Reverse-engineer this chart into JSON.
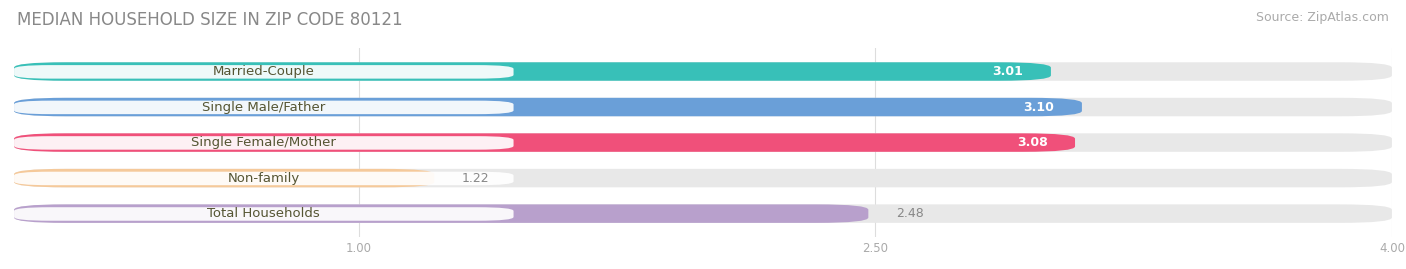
{
  "title": "MEDIAN HOUSEHOLD SIZE IN ZIP CODE 80121",
  "source": "Source: ZipAtlas.com",
  "categories": [
    "Married-Couple",
    "Single Male/Father",
    "Single Female/Mother",
    "Non-family",
    "Total Households"
  ],
  "values": [
    3.01,
    3.1,
    3.08,
    1.22,
    2.48
  ],
  "bar_colors": [
    "#38c0b8",
    "#6a9fd8",
    "#f0507a",
    "#f5c99a",
    "#b8a0cc"
  ],
  "track_color": "#e8e8e8",
  "label_bg_color": "#ffffff",
  "xlim": [
    0,
    4.0
  ],
  "xticks": [
    1.0,
    2.5,
    4.0
  ],
  "title_fontsize": 12,
  "source_fontsize": 9,
  "label_fontsize": 9.5,
  "value_fontsize": 9,
  "bar_height": 0.52,
  "background_color": "#ffffff",
  "title_color": "#888888",
  "label_text_color": "#555533",
  "value_color_inside": "#ffffff",
  "value_color_outside": "#888888"
}
